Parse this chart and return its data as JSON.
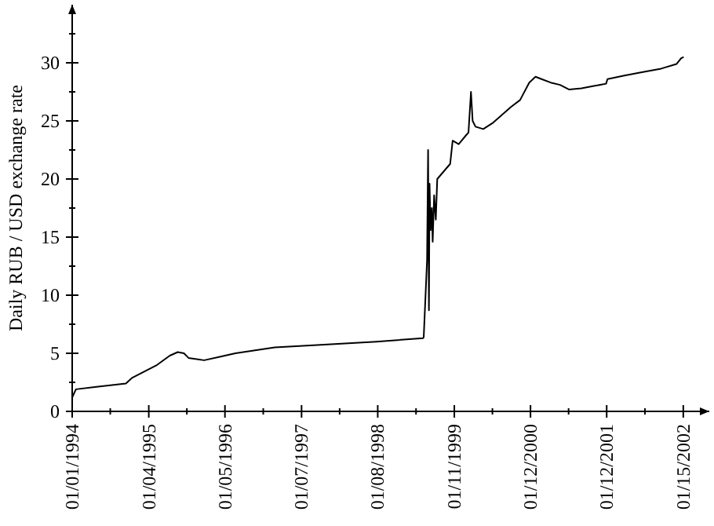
{
  "chart_data": {
    "type": "line",
    "ylabel": "Daily RUB / USD exchange rate",
    "xlim": [
      "1994-01-01",
      "2002-05-20"
    ],
    "ylim": [
      0,
      35
    ],
    "xticks": [
      {
        "value": "1994-01-01",
        "label": "01/01/1994"
      },
      {
        "value": "1994-07-03",
        "label": null
      },
      {
        "value": "1995-01-04",
        "label": "01/04/1995"
      },
      {
        "value": "1995-07-06",
        "label": null
      },
      {
        "value": "1996-01-05",
        "label": "01/05/1996"
      },
      {
        "value": "1996-07-07",
        "label": null
      },
      {
        "value": "1997-01-07",
        "label": "01/07/1997"
      },
      {
        "value": "1997-07-09",
        "label": null
      },
      {
        "value": "1998-01-08",
        "label": "01/08/1998"
      },
      {
        "value": "1998-07-11",
        "label": null
      },
      {
        "value": "1999-01-11",
        "label": "01/11/1999"
      },
      {
        "value": "1999-07-13",
        "label": null
      },
      {
        "value": "2000-01-12",
        "label": "01/12/2000"
      },
      {
        "value": "2000-07-13",
        "label": null
      },
      {
        "value": "2001-01-12",
        "label": "01/12/2001"
      },
      {
        "value": "2001-07-15",
        "label": null
      },
      {
        "value": "2002-01-15",
        "label": "01/15/2002"
      }
    ],
    "yticks": [
      0,
      {
        "value": 2.5,
        "label": null
      },
      5,
      {
        "value": 7.5,
        "label": null
      },
      10,
      {
        "value": 12.5,
        "label": null
      },
      15,
      {
        "value": 17.5,
        "label": null
      },
      20,
      {
        "value": 22.5,
        "label": null
      },
      25,
      {
        "value": 27.5,
        "label": null
      },
      30,
      {
        "value": 32.5,
        "label": null
      }
    ],
    "grid": false,
    "series": [
      {
        "color": "#000000",
        "x": [
          "1994-01-01",
          "1994-01-19",
          "1994-04-19",
          "1994-09-16",
          "1994-10-17",
          "1994-11-30",
          "1995-02-13",
          "1995-04-15",
          "1995-05-23",
          "1995-06-22",
          "1995-07-14",
          "1995-09-27",
          "1995-12-11",
          "1996-02-24",
          "1996-08-31",
          "1997-03-06",
          "1998-01-01",
          "1998-08-14",
          "1998-08-17",
          "1998-09-02",
          "1998-09-07",
          "1998-09-10",
          "1998-09-11",
          "1998-09-14",
          "1998-09-19",
          "1998-09-25",
          "1998-09-29",
          "1998-10-06",
          "1998-10-14",
          "1998-10-21",
          "1998-12-22",
          "1999-01-03",
          "1999-02-01",
          "1999-03-10",
          "1999-03-20",
          "1999-04-01",
          "1999-04-09",
          "1999-04-23",
          "1999-05-30",
          "1999-07-13",
          "1999-08-27",
          "1999-10-10",
          "1999-11-23",
          "2000-01-06",
          "2000-02-05",
          "2000-03-05",
          "2000-04-18",
          "2000-06-02",
          "2000-07-16",
          "2000-09-13",
          "2000-11-11",
          "2001-01-09",
          "2001-01-16",
          "2001-04-07",
          "2001-07-05",
          "2001-10-01",
          "2001-12-14",
          "2002-01-05",
          "2002-01-17"
        ],
        "values": [
          1.2,
          1.9,
          2.1,
          2.4,
          2.9,
          3.3,
          4.0,
          4.8,
          5.1,
          5.0,
          4.6,
          4.4,
          4.7,
          5.0,
          5.5,
          5.7,
          6.0,
          6.3,
          6.4,
          13,
          22.5,
          12,
          8.7,
          19.6,
          15.6,
          17.5,
          14.6,
          18.6,
          16.5,
          20,
          21.3,
          23.3,
          23,
          23.8,
          24.0,
          27.5,
          25,
          24.5,
          24.3,
          24.8,
          25.5,
          26.2,
          26.8,
          28.3,
          28.8,
          28.6,
          28.3,
          28.1,
          27.7,
          27.8,
          28.0,
          28.2,
          28.6,
          28.9,
          29.2,
          29.5,
          29.9,
          30.4,
          30.5
        ]
      }
    ]
  }
}
